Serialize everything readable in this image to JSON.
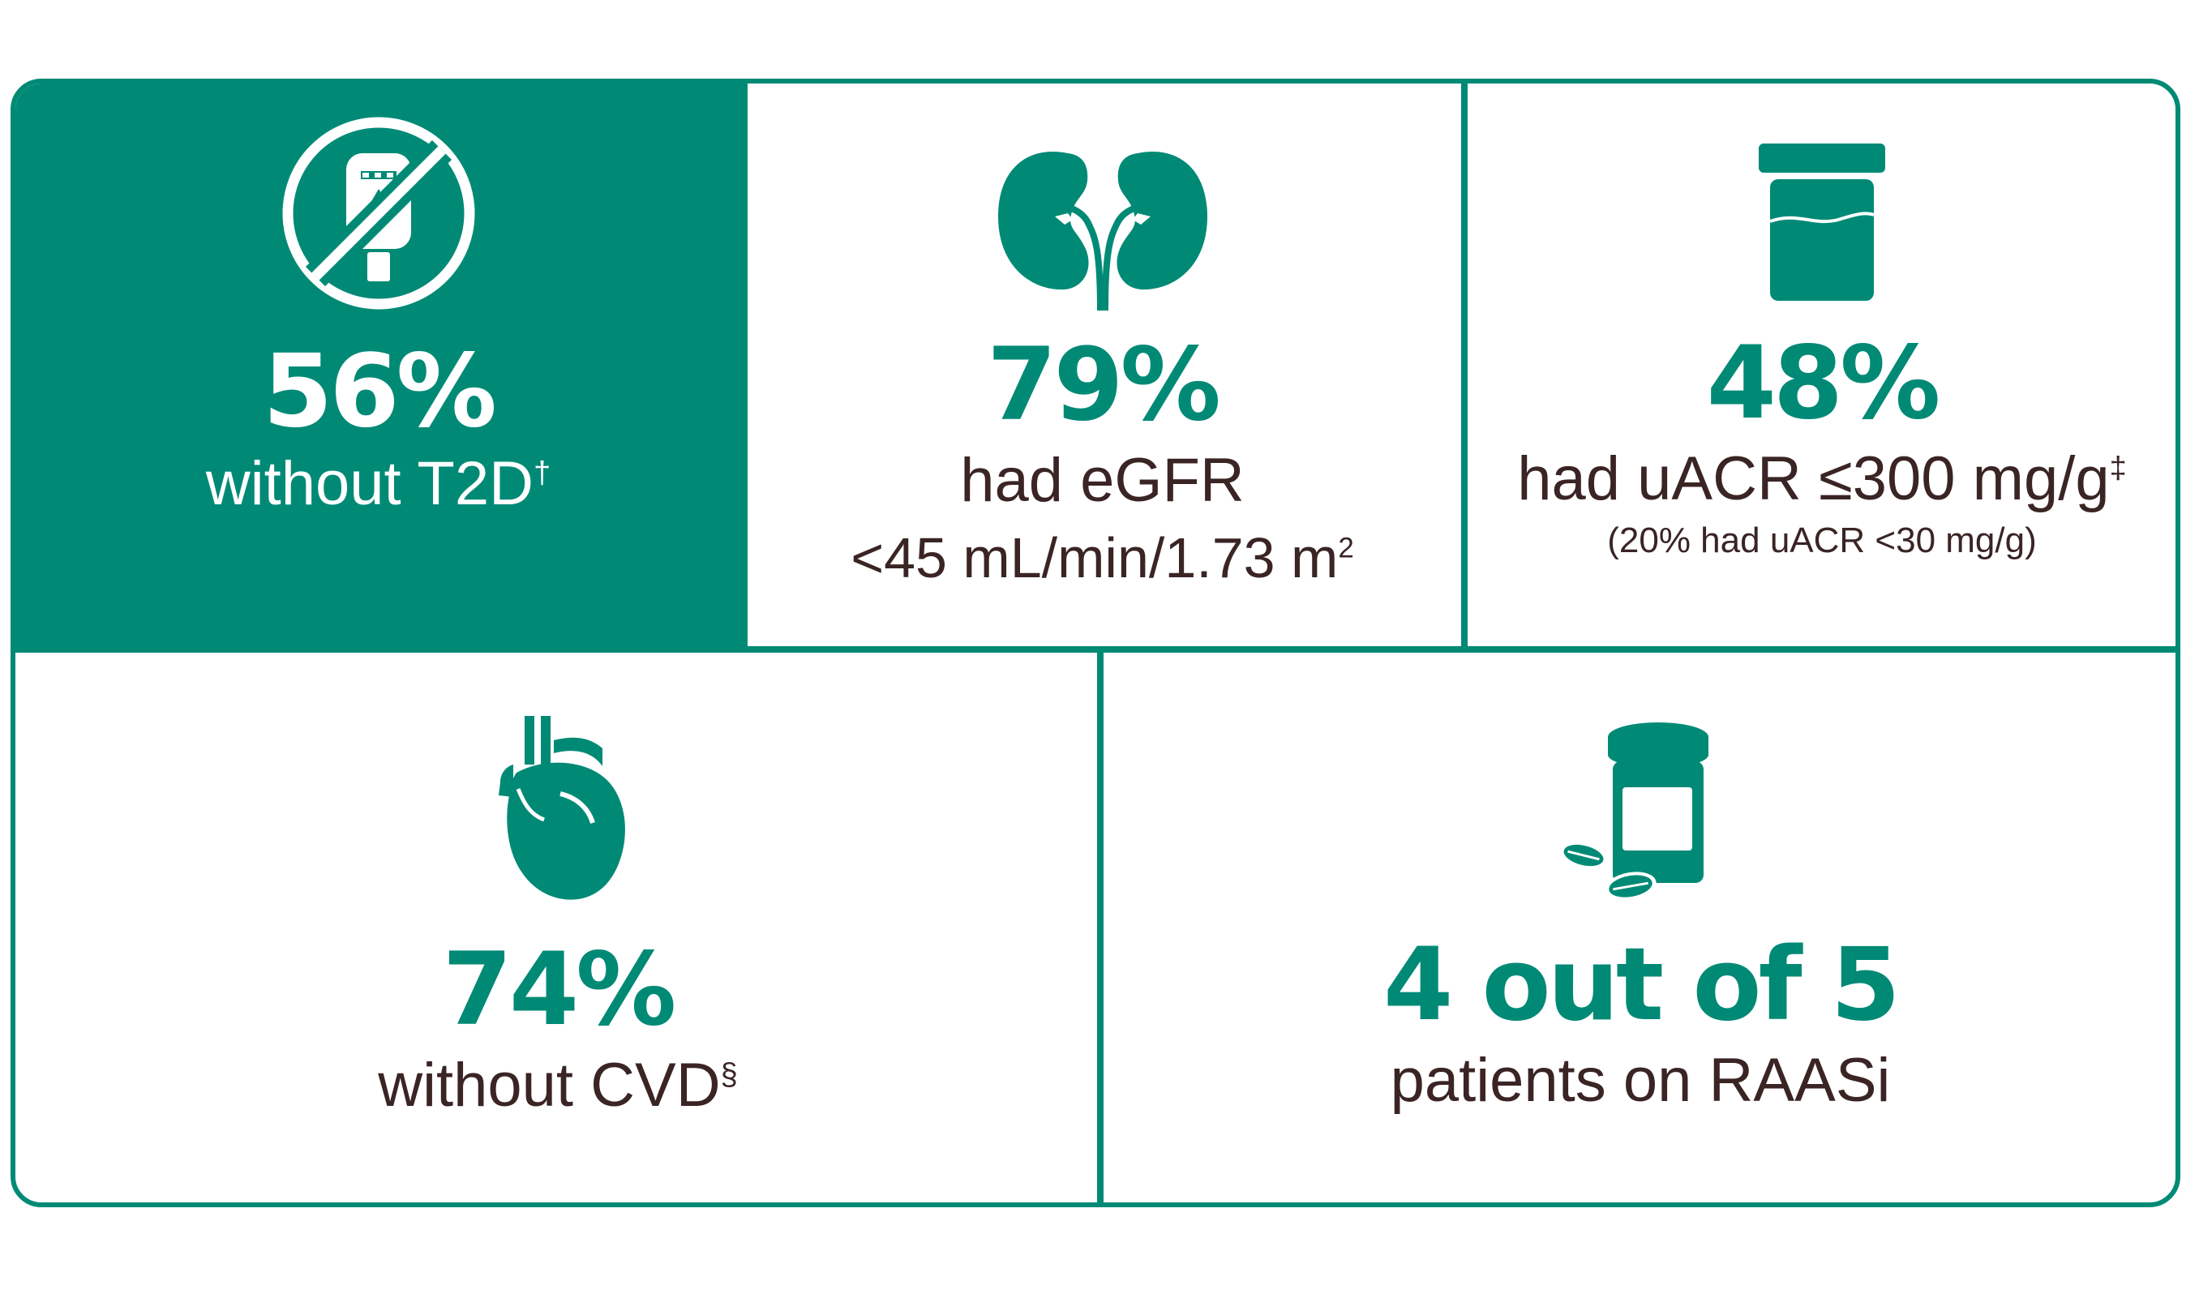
{
  "colors": {
    "accent": "#008a76",
    "text": "#3a2424",
    "inverse": "#ffffff"
  },
  "stats": [
    {
      "icon": "no-glucometer-icon",
      "value": "56%",
      "label": "without T2D",
      "footnote": "†"
    },
    {
      "icon": "kidneys-icon",
      "value": "79%",
      "label": "had eGFR",
      "label_2": "<45 mL/min/1.73 m",
      "label_2_sup": "2"
    },
    {
      "icon": "specimen-jar-icon",
      "value": "48%",
      "label": "had uACR ≤300 mg/g",
      "footnote": "‡",
      "note": "(20% had uACR <30 mg/g)"
    },
    {
      "icon": "heart-icon",
      "value": "74%",
      "label": "without CVD",
      "footnote": "§"
    },
    {
      "icon": "pill-bottle-icon",
      "value": "4 out of 5",
      "label": "patients on RAASi"
    }
  ]
}
